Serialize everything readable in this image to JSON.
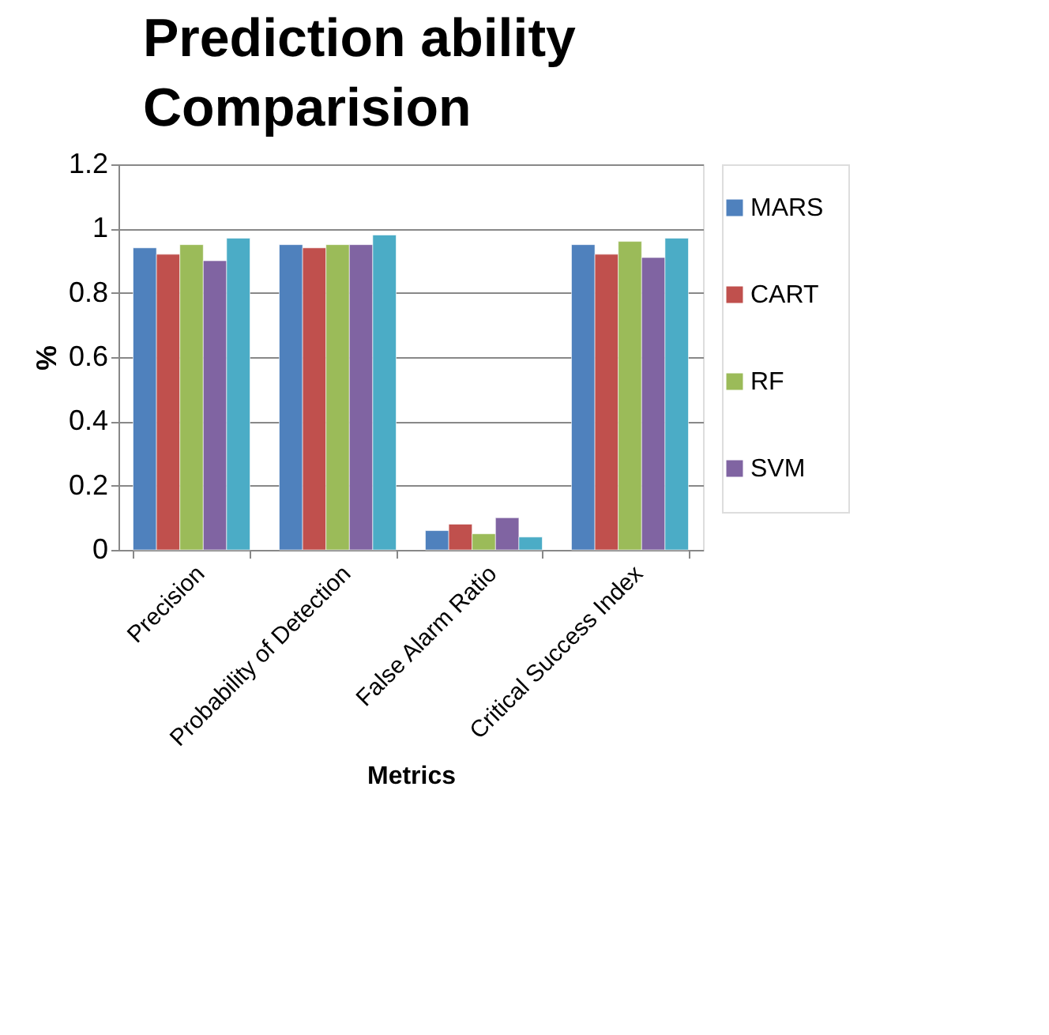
{
  "chart_data": {
    "type": "bar",
    "title": "Prediction ability Comparision",
    "xlabel": "Metrics",
    "ylabel": "%",
    "categories": [
      "Precision",
      "Probability of Detection",
      "False Alarm Ratio",
      "Critical Success Index"
    ],
    "series": [
      {
        "name": "MARS",
        "color": "#4f81bd",
        "values": [
          0.94,
          0.95,
          0.06,
          0.95
        ]
      },
      {
        "name": "CART",
        "color": "#c0504d",
        "values": [
          0.92,
          0.94,
          0.08,
          0.92
        ]
      },
      {
        "name": "RF",
        "color": "#9bbb59",
        "values": [
          0.95,
          0.95,
          0.05,
          0.96
        ]
      },
      {
        "name": "SVM",
        "color": "#8064a2",
        "values": [
          0.9,
          0.95,
          0.1,
          0.91
        ]
      },
      {
        "color": "#4bacc6",
        "values": [
          0.97,
          0.98,
          0.04,
          0.97
        ]
      }
    ],
    "ylim": [
      0,
      1.2
    ],
    "yticks": [
      0,
      0.2,
      0.4,
      0.6,
      0.8,
      1,
      1.2
    ],
    "grid": "y",
    "legend": "right"
  }
}
